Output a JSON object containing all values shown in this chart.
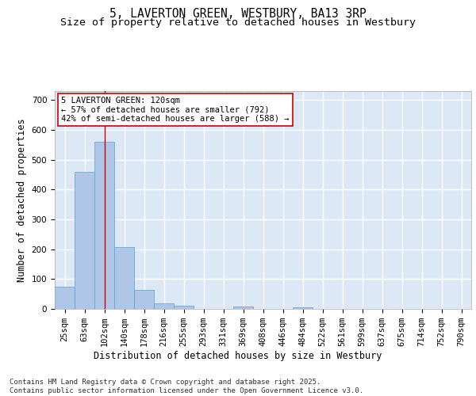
{
  "title_line1": "5, LAVERTON GREEN, WESTBURY, BA13 3RP",
  "title_line2": "Size of property relative to detached houses in Westbury",
  "xlabel": "Distribution of detached houses by size in Westbury",
  "ylabel": "Number of detached properties",
  "categories": [
    "25sqm",
    "63sqm",
    "102sqm",
    "140sqm",
    "178sqm",
    "216sqm",
    "255sqm",
    "293sqm",
    "331sqm",
    "369sqm",
    "408sqm",
    "446sqm",
    "484sqm",
    "522sqm",
    "561sqm",
    "599sqm",
    "637sqm",
    "675sqm",
    "714sqm",
    "752sqm",
    "790sqm"
  ],
  "values": [
    75,
    460,
    560,
    207,
    65,
    18,
    10,
    0,
    0,
    8,
    0,
    0,
    5,
    0,
    0,
    0,
    0,
    0,
    0,
    0,
    0
  ],
  "bar_color": "#aec6e8",
  "bar_edge_color": "#5a9fd4",
  "bg_color": "#dce8f5",
  "grid_color": "#ffffff",
  "annotation_text": "5 LAVERTON GREEN: 120sqm\n← 57% of detached houses are smaller (792)\n42% of semi-detached houses are larger (588) →",
  "annotation_box_color": "#ffffff",
  "annotation_box_edge": "#cc0000",
  "redline_x": 2.0,
  "ylim": [
    0,
    730
  ],
  "yticks": [
    0,
    100,
    200,
    300,
    400,
    500,
    600,
    700
  ],
  "footer": "Contains HM Land Registry data © Crown copyright and database right 2025.\nContains public sector information licensed under the Open Government Licence v3.0.",
  "title_fontsize": 10.5,
  "subtitle_fontsize": 9.5,
  "axis_label_fontsize": 8.5,
  "tick_fontsize": 7.5,
  "annotation_fontsize": 7.5,
  "footer_fontsize": 6.5
}
